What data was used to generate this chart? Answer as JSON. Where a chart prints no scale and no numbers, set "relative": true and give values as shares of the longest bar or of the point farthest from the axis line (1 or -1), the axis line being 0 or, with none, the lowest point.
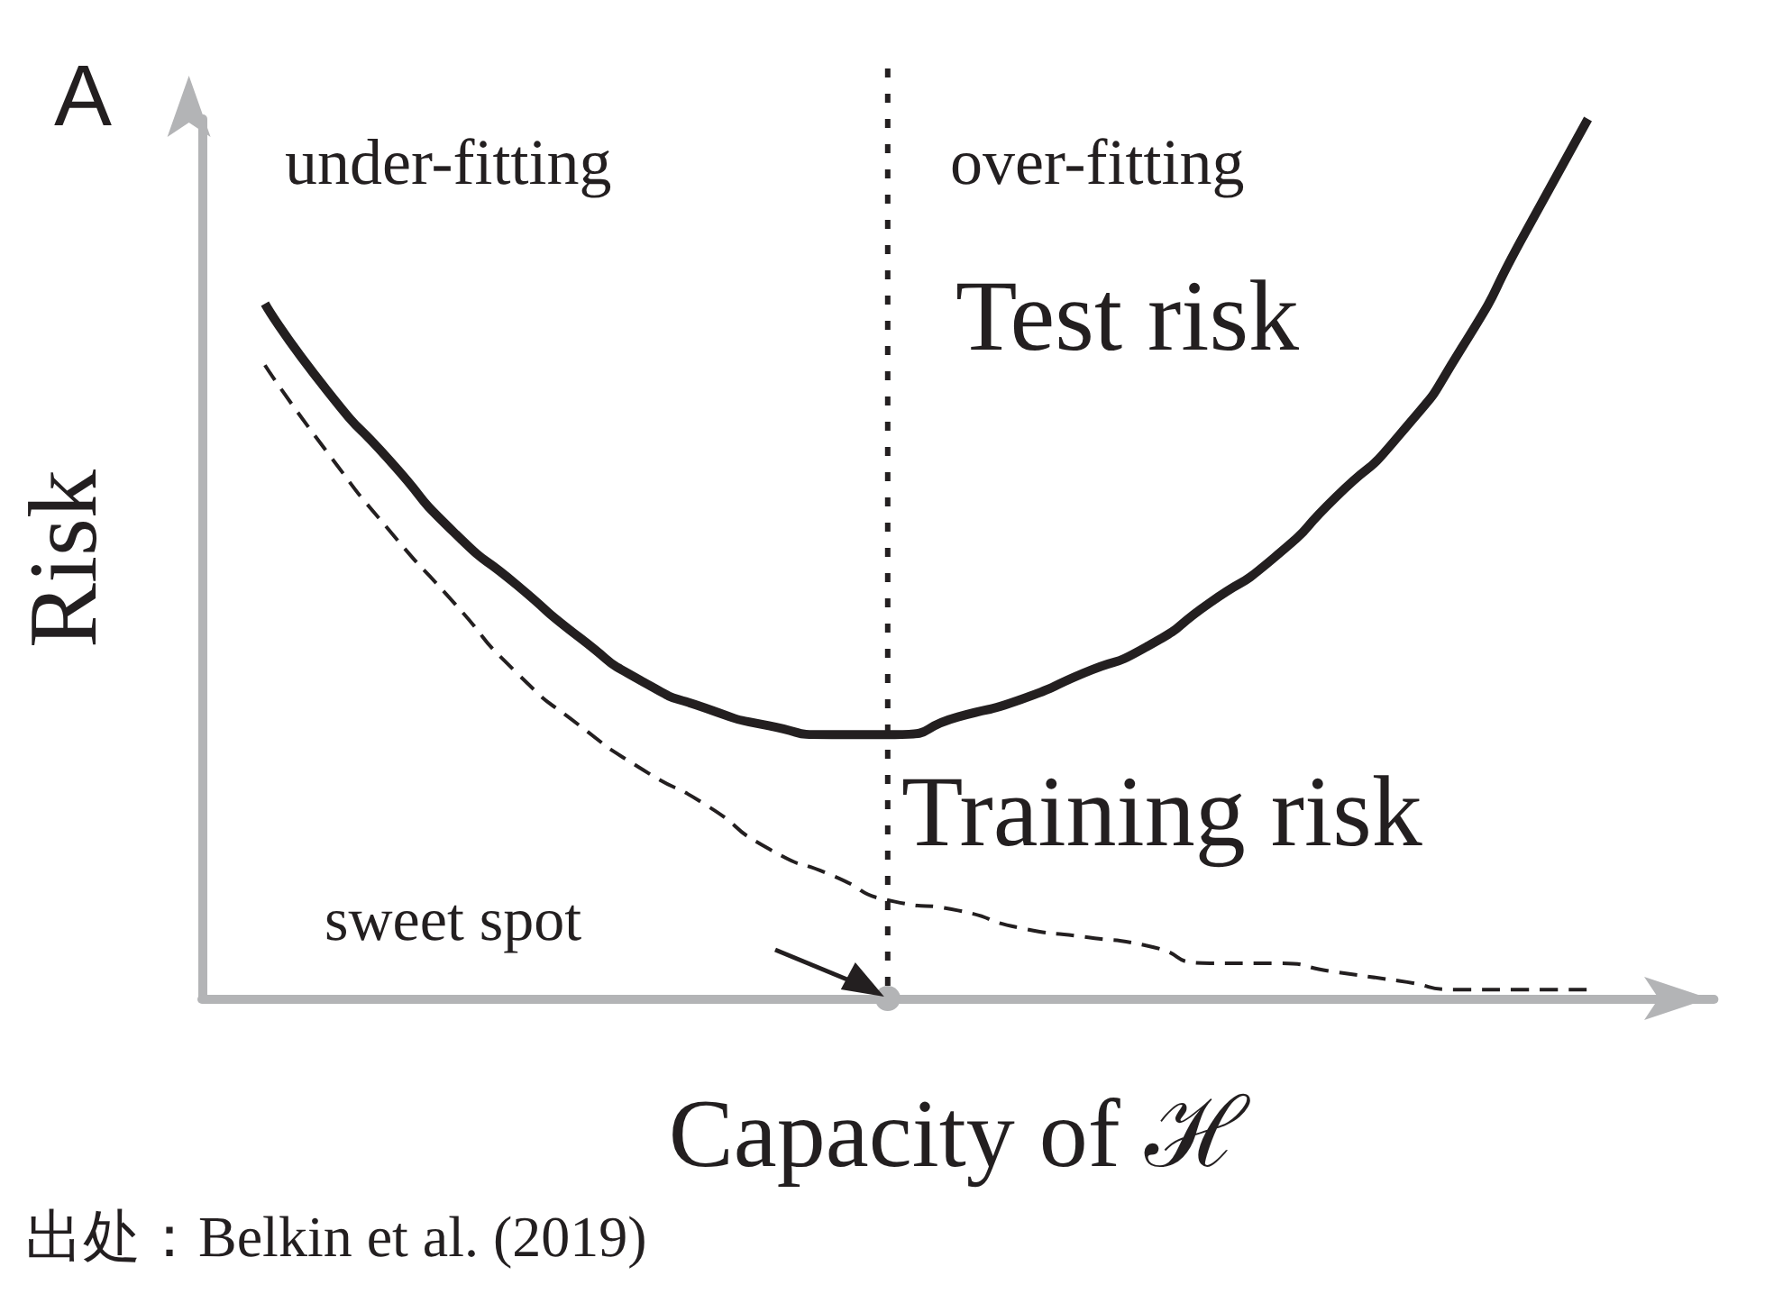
{
  "chart_data": {
    "type": "line",
    "relative": true,
    "xlabel": "Capacity of ℋ",
    "ylabel": "Risk",
    "legend": false,
    "grid": false,
    "marker": "none",
    "categories": [
      null,
      null,
      null,
      null,
      null,
      null,
      null,
      null,
      null,
      null,
      null,
      null,
      null,
      null,
      null,
      null,
      null,
      null,
      null,
      null,
      null,
      null,
      null,
      null,
      null
    ],
    "series": [
      {
        "name": "Test risk",
        "color": "#231f20",
        "line_style": "solid",
        "values": [
          null,
          0.79,
          0.69,
          0.61,
          0.53,
          0.47,
          0.41,
          0.36,
          0.33,
          0.31,
          0.3,
          0.3,
          0.32,
          0.34,
          0.37,
          0.4,
          0.45,
          0.5,
          0.57,
          0.64,
          0.74,
          0.87,
          1,
          null,
          null
        ]
      },
      {
        "name": "Training risk",
        "color": "#231f20",
        "line_style": "dashed",
        "values": [
          null,
          0.72,
          0.62,
          0.53,
          0.45,
          0.37,
          0.31,
          0.26,
          0.22,
          0.17,
          0.14,
          0.11,
          0.1,
          0.08,
          0.07,
          0.06,
          0.04,
          0.04,
          0.03,
          0.02,
          0.01,
          0.01,
          0.01,
          null,
          null
        ]
      }
    ],
    "annotations": [
      "A",
      "under-fitting",
      "over-fitting",
      "sweet spot",
      "出处：Belkin et al. (2019)"
    ]
  }
}
